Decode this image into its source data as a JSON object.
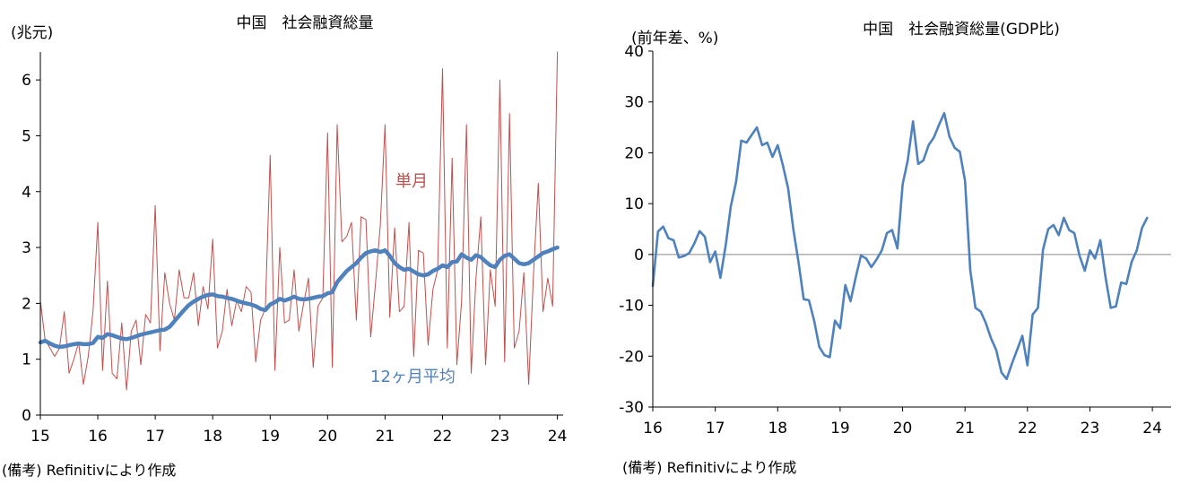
{
  "note_left": "(備考) Refinitivにより作成",
  "note_right": "(備考) Refinitivにより作成",
  "chart_data": [
    {
      "type": "line",
      "title": "中国　社会融資総量",
      "ylabel": "(兆元)",
      "ylim": [
        0,
        6.5
      ],
      "yticks": [
        0,
        1,
        2,
        3,
        4,
        5,
        6
      ],
      "xlim": [
        15,
        24.1
      ],
      "xticks": [
        "15",
        "16",
        "17",
        "18",
        "19",
        "20",
        "21",
        "22",
        "23",
        "24"
      ],
      "grid": false,
      "colors": {
        "single_month": "#c0504d",
        "avg12": "#4f81bd"
      },
      "series": [
        {
          "name": "単月",
          "x": [
            15.0,
            15.083,
            15.167,
            15.25,
            15.333,
            15.417,
            15.5,
            15.583,
            15.667,
            15.75,
            15.833,
            15.917,
            16.0,
            16.083,
            16.167,
            16.25,
            16.333,
            16.417,
            16.5,
            16.583,
            16.667,
            16.75,
            16.833,
            16.917,
            17.0,
            17.083,
            17.167,
            17.25,
            17.333,
            17.417,
            17.5,
            17.583,
            17.667,
            17.75,
            17.833,
            17.917,
            18.0,
            18.083,
            18.167,
            18.25,
            18.333,
            18.417,
            18.5,
            18.583,
            18.667,
            18.75,
            18.833,
            18.917,
            19.0,
            19.083,
            19.167,
            19.25,
            19.333,
            19.417,
            19.5,
            19.583,
            19.667,
            19.75,
            19.833,
            19.917,
            20.0,
            20.083,
            20.167,
            20.25,
            20.333,
            20.417,
            20.5,
            20.583,
            20.667,
            20.75,
            20.833,
            20.917,
            21.0,
            21.083,
            21.167,
            21.25,
            21.333,
            21.417,
            21.5,
            21.583,
            21.667,
            21.75,
            21.833,
            21.917,
            22.0,
            22.083,
            22.167,
            22.25,
            22.333,
            22.417,
            22.5,
            22.583,
            22.667,
            22.75,
            22.833,
            22.917,
            23.0,
            23.083,
            23.167,
            23.25,
            23.333,
            23.417,
            23.5,
            23.583,
            23.667,
            23.75,
            23.833,
            23.917,
            24.0
          ],
          "values": [
            2.05,
            1.35,
            1.2,
            1.05,
            1.2,
            1.85,
            0.75,
            1.0,
            1.3,
            0.55,
            1.05,
            1.85,
            3.45,
            0.8,
            2.4,
            0.75,
            0.65,
            1.65,
            0.45,
            1.5,
            1.7,
            0.9,
            1.8,
            1.65,
            3.75,
            1.15,
            2.55,
            2.0,
            1.7,
            2.6,
            2.1,
            2.1,
            2.55,
            1.6,
            2.3,
            1.9,
            3.15,
            1.2,
            1.5,
            2.25,
            1.6,
            2.05,
            1.85,
            2.3,
            2.2,
            0.95,
            1.7,
            1.9,
            4.65,
            0.8,
            3.0,
            1.65,
            1.7,
            2.6,
            1.5,
            2.0,
            2.45,
            0.85,
            1.95,
            2.1,
            5.05,
            0.85,
            5.2,
            3.1,
            3.2,
            3.45,
            1.7,
            3.55,
            3.5,
            1.4,
            2.35,
            3.4,
            5.2,
            1.75,
            3.35,
            1.85,
            1.95,
            3.45,
            1.05,
            2.95,
            2.9,
            1.25,
            2.25,
            2.6,
            6.2,
            1.2,
            4.6,
            0.9,
            2.05,
            5.2,
            0.75,
            2.45,
            3.55,
            0.9,
            2.6,
            1.95,
            6.0,
            0.95,
            5.4,
            1.2,
            1.5,
            2.55,
            0.55,
            2.5,
            4.15,
            1.85,
            2.45,
            1.95,
            6.5
          ]
        },
        {
          "name": "12ヶ月平均",
          "x": [
            15.0,
            15.083,
            15.167,
            15.25,
            15.333,
            15.417,
            15.5,
            15.583,
            15.667,
            15.75,
            15.833,
            15.917,
            16.0,
            16.083,
            16.167,
            16.25,
            16.333,
            16.417,
            16.5,
            16.583,
            16.667,
            16.75,
            16.833,
            16.917,
            17.0,
            17.083,
            17.167,
            17.25,
            17.333,
            17.417,
            17.5,
            17.583,
            17.667,
            17.75,
            17.833,
            17.917,
            18.0,
            18.083,
            18.167,
            18.25,
            18.333,
            18.417,
            18.5,
            18.583,
            18.667,
            18.75,
            18.833,
            18.917,
            19.0,
            19.083,
            19.167,
            19.25,
            19.333,
            19.417,
            19.5,
            19.583,
            19.667,
            19.75,
            19.833,
            19.917,
            20.0,
            20.083,
            20.167,
            20.25,
            20.333,
            20.417,
            20.5,
            20.583,
            20.667,
            20.75,
            20.833,
            20.917,
            21.0,
            21.083,
            21.167,
            21.25,
            21.333,
            21.417,
            21.5,
            21.583,
            21.667,
            21.75,
            21.833,
            21.917,
            22.0,
            22.083,
            22.167,
            22.25,
            22.333,
            22.417,
            22.5,
            22.583,
            22.667,
            22.75,
            22.833,
            22.917,
            23.0,
            23.083,
            23.167,
            23.25,
            23.333,
            23.417,
            23.5,
            23.583,
            23.667,
            23.75,
            23.833,
            23.917,
            24.0
          ],
          "values": [
            1.3,
            1.33,
            1.28,
            1.24,
            1.22,
            1.23,
            1.25,
            1.27,
            1.28,
            1.27,
            1.27,
            1.29,
            1.4,
            1.38,
            1.45,
            1.43,
            1.4,
            1.37,
            1.36,
            1.38,
            1.41,
            1.44,
            1.46,
            1.48,
            1.5,
            1.52,
            1.53,
            1.58,
            1.68,
            1.78,
            1.88,
            1.97,
            2.03,
            2.08,
            2.12,
            2.15,
            2.16,
            2.13,
            2.12,
            2.1,
            2.08,
            2.05,
            2.02,
            2.0,
            1.98,
            1.95,
            1.9,
            1.88,
            1.98,
            2.02,
            2.08,
            2.05,
            2.08,
            2.12,
            2.08,
            2.07,
            2.08,
            2.1,
            2.12,
            2.13,
            2.18,
            2.2,
            2.38,
            2.48,
            2.58,
            2.65,
            2.72,
            2.82,
            2.9,
            2.93,
            2.95,
            2.92,
            2.95,
            2.85,
            2.72,
            2.65,
            2.6,
            2.62,
            2.57,
            2.52,
            2.5,
            2.52,
            2.58,
            2.62,
            2.68,
            2.65,
            2.74,
            2.75,
            2.88,
            2.82,
            2.78,
            2.86,
            2.83,
            2.75,
            2.68,
            2.65,
            2.78,
            2.85,
            2.88,
            2.8,
            2.72,
            2.7,
            2.72,
            2.78,
            2.84,
            2.9,
            2.93,
            2.97,
            3.0
          ]
        }
      ],
      "annotations": [
        {
          "text": "単月",
          "color": "#c0504d"
        },
        {
          "text": "12ヶ月平均",
          "color": "#4f81bd"
        }
      ]
    },
    {
      "type": "line",
      "title": "中国　社会融資総量(GDP比)",
      "ylabel": "(前年差、%)",
      "ylim": [
        -30,
        40
      ],
      "yticks": [
        -30,
        -20,
        -10,
        0,
        10,
        20,
        30,
        40
      ],
      "xlim": [
        16,
        24.3
      ],
      "xticks": [
        "16",
        "17",
        "18",
        "19",
        "20",
        "21",
        "22",
        "23",
        "24"
      ],
      "grid": false,
      "zero_line": true,
      "colors": {
        "line": "#4f81bd"
      },
      "series": [
        {
          "name": "",
          "x": [
            16.0,
            16.083,
            16.167,
            16.25,
            16.333,
            16.417,
            16.5,
            16.583,
            16.667,
            16.75,
            16.833,
            16.917,
            17.0,
            17.083,
            17.167,
            17.25,
            17.333,
            17.417,
            17.5,
            17.583,
            17.667,
            17.75,
            17.833,
            17.917,
            18.0,
            18.083,
            18.167,
            18.25,
            18.333,
            18.417,
            18.5,
            18.583,
            18.667,
            18.75,
            18.833,
            18.917,
            19.0,
            19.083,
            19.167,
            19.25,
            19.333,
            19.417,
            19.5,
            19.583,
            19.667,
            19.75,
            19.833,
            19.917,
            20.0,
            20.083,
            20.167,
            20.25,
            20.333,
            20.417,
            20.5,
            20.583,
            20.667,
            20.75,
            20.833,
            20.917,
            21.0,
            21.083,
            21.167,
            21.25,
            21.333,
            21.417,
            21.5,
            21.583,
            21.667,
            21.75,
            21.833,
            21.917,
            22.0,
            22.083,
            22.167,
            22.25,
            22.333,
            22.417,
            22.5,
            22.583,
            22.667,
            22.75,
            22.833,
            22.917,
            23.0,
            23.083,
            23.167,
            23.25,
            23.333,
            23.417,
            23.5,
            23.583,
            23.667,
            23.75,
            23.833,
            23.917
          ],
          "values": [
            -6.2,
            4.5,
            5.5,
            3.2,
            2.8,
            -0.6,
            -0.3,
            0.3,
            2.2,
            4.6,
            3.5,
            -1.5,
            0.6,
            -4.6,
            1.8,
            9.5,
            14.2,
            22.4,
            22.0,
            23.5,
            25.0,
            21.5,
            22.0,
            19.2,
            21.5,
            17.5,
            13.0,
            5.0,
            -1.5,
            -8.8,
            -9.0,
            -13.0,
            -18.2,
            -19.8,
            -20.2,
            -13.0,
            -14.5,
            -6.0,
            -9.2,
            -4.5,
            -0.2,
            -0.8,
            -2.5,
            -1.0,
            0.8,
            4.2,
            4.8,
            1.2,
            13.8,
            18.5,
            26.2,
            17.8,
            18.5,
            21.5,
            23.0,
            25.5,
            27.8,
            23.2,
            21.0,
            20.2,
            14.5,
            -3.0,
            -10.5,
            -11.2,
            -13.5,
            -16.5,
            -18.8,
            -23.2,
            -24.5,
            -21.5,
            -18.8,
            -16.0,
            -21.8,
            -11.8,
            -10.5,
            1.0,
            5.0,
            5.8,
            3.8,
            7.2,
            4.8,
            4.2,
            -0.2,
            -3.2,
            0.8,
            -0.8,
            2.8,
            -4.5,
            -10.5,
            -10.2,
            -5.5,
            -5.8,
            -1.5,
            0.8,
            5.2,
            7.2
          ]
        }
      ]
    }
  ]
}
